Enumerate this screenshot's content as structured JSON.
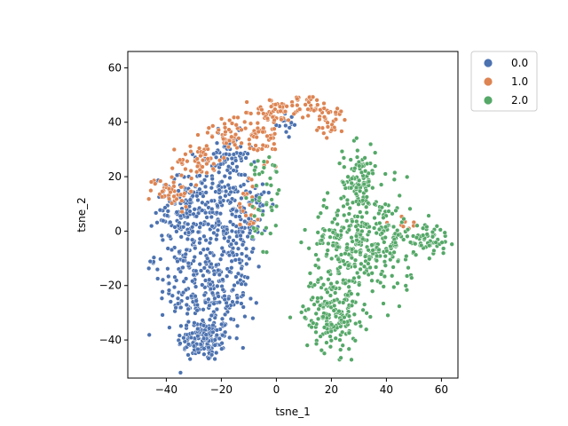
{
  "chart_data": {
    "type": "scatter",
    "title": "",
    "xlabel": "tsne_1",
    "ylabel": "tsne_2",
    "xlim": [
      -54,
      66
    ],
    "ylim": [
      -54,
      66
    ],
    "x_ticks": [
      -40,
      -20,
      0,
      20,
      40,
      60
    ],
    "y_ticks": [
      -40,
      -20,
      0,
      20,
      40,
      60
    ],
    "x_tick_labels": [
      "−40",
      "−20",
      "0",
      "20",
      "40",
      "60"
    ],
    "y_tick_labels": [
      "−40",
      "−20",
      "0",
      "20",
      "40",
      "60"
    ],
    "grid": false,
    "legend_position": "outside-upper-right",
    "series": [
      {
        "name": "0.0",
        "color": "#4c72b0",
        "clusters": [
          {
            "cx": -26,
            "cy": -40,
            "sx": 5,
            "sy": 4,
            "n": 140
          },
          {
            "cx": -24,
            "cy": -25,
            "sx": 7,
            "sy": 7,
            "n": 160
          },
          {
            "cx": -30,
            "cy": -8,
            "sx": 7,
            "sy": 8,
            "n": 150
          },
          {
            "cx": -33,
            "cy": 8,
            "sx": 6,
            "sy": 6,
            "n": 110
          },
          {
            "cx": -20,
            "cy": 15,
            "sx": 5,
            "sy": 8,
            "n": 110
          },
          {
            "cx": -14,
            "cy": -5,
            "sx": 4,
            "sy": 9,
            "n": 80
          },
          {
            "cx": -17,
            "cy": 28,
            "sx": 4,
            "sy": 4,
            "n": 50
          },
          {
            "cx": -8,
            "cy": 10,
            "sx": 3,
            "sy": 6,
            "n": 30
          },
          {
            "cx": 3,
            "cy": 40,
            "sx": 3,
            "sy": 3,
            "n": 14
          }
        ]
      },
      {
        "name": "1.0",
        "color": "#dd8452",
        "clusters": [
          {
            "cx": -38,
            "cy": 15,
            "sx": 4,
            "sy": 3,
            "n": 45
          },
          {
            "cx": -28,
            "cy": 26,
            "sx": 4,
            "sy": 3,
            "n": 45
          },
          {
            "cx": -18,
            "cy": 36,
            "sx": 4,
            "sy": 3,
            "n": 40
          },
          {
            "cx": -6,
            "cy": 35,
            "sx": 4,
            "sy": 6,
            "n": 60
          },
          {
            "cx": 0,
            "cy": 44,
            "sx": 4,
            "sy": 2,
            "n": 35
          },
          {
            "cx": 12,
            "cy": 46,
            "sx": 4,
            "sy": 2,
            "n": 40
          },
          {
            "cx": 20,
            "cy": 40,
            "sx": 3,
            "sy": 3,
            "n": 30
          },
          {
            "cx": -10,
            "cy": 12,
            "sx": 2,
            "sy": 7,
            "n": 20
          },
          {
            "cx": 47,
            "cy": 3,
            "sx": 3,
            "sy": 1.5,
            "n": 10
          }
        ]
      },
      {
        "name": "2.0",
        "color": "#55a868",
        "clusters": [
          {
            "cx": 30,
            "cy": 18,
            "sx": 3,
            "sy": 7,
            "n": 110
          },
          {
            "cx": 26,
            "cy": -5,
            "sx": 7,
            "sy": 9,
            "n": 200
          },
          {
            "cx": 40,
            "cy": -5,
            "sx": 5,
            "sy": 10,
            "n": 130
          },
          {
            "cx": 20,
            "cy": -30,
            "sx": 5,
            "sy": 7,
            "n": 170
          },
          {
            "cx": 55,
            "cy": -3,
            "sx": 4,
            "sy": 3,
            "n": 60
          },
          {
            "cx": -5,
            "cy": 5,
            "sx": 3,
            "sy": 11,
            "n": 30
          },
          {
            "cx": -3,
            "cy": 23,
            "sx": 3,
            "sy": 3,
            "n": 15
          }
        ]
      }
    ]
  }
}
